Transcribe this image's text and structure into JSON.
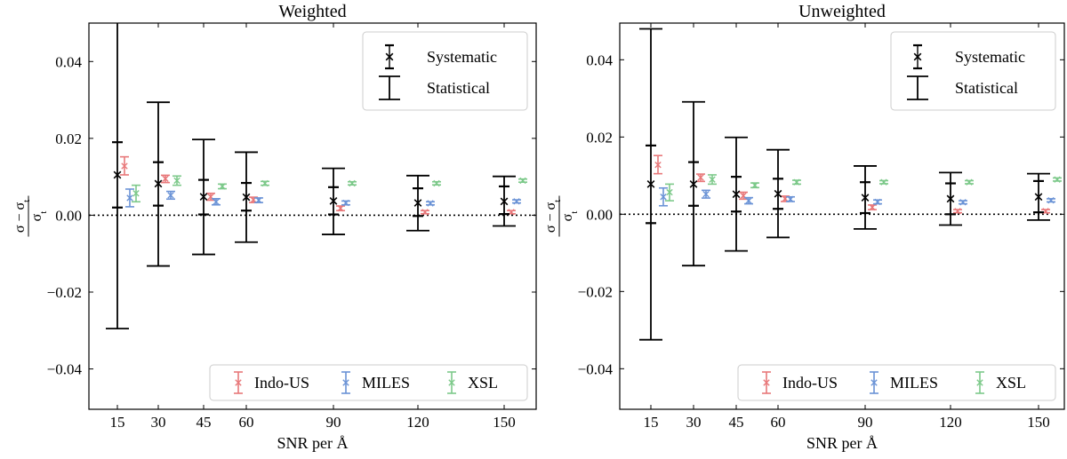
{
  "chart_data": [
    {
      "type": "errorbar",
      "title": "Weighted",
      "xlabel": "SNR per Å",
      "ylabel": {
        "num": "σ − σ",
        "num_sub": "t",
        "den": "σ",
        "den_sub": "t"
      },
      "ylim": [
        -0.0505,
        0.05
      ],
      "yticks": [
        -0.04,
        -0.02,
        0.0,
        0.02,
        0.04
      ],
      "ytick_labels": [
        "−0.04",
        "−0.02",
        "0.00",
        "0.02",
        "0.04"
      ],
      "categories": [
        "15",
        "30",
        "45",
        "60",
        "90",
        "120",
        "150"
      ],
      "reference_line": 0,
      "legend_upper": {
        "entries": [
          "Systematic",
          "Statistical"
        ],
        "location": "upper right"
      },
      "legend_lower": {
        "entries": [
          "Indo-US",
          "MILES",
          "XSL"
        ],
        "location": "lower right"
      },
      "colors": {
        "Indo-US": "#e8787a",
        "MILES": "#6b93d6",
        "XSL": "#7dc98a",
        "combined": "#000000"
      },
      "combined": [
        {
          "snr": 15,
          "value": 0.0105,
          "sys_low": 0.002,
          "sys_high": 0.019,
          "stat_low": -0.0295,
          "stat_high": 0.052
        },
        {
          "snr": 30,
          "value": 0.0082,
          "sys_low": 0.0025,
          "sys_high": 0.0138,
          "stat_low": -0.0132,
          "stat_high": 0.0294
        },
        {
          "snr": 45,
          "value": 0.0048,
          "sys_low": 0.0002,
          "sys_high": 0.0092,
          "stat_low": -0.0102,
          "stat_high": 0.0197
        },
        {
          "snr": 60,
          "value": 0.0047,
          "sys_low": 0.0012,
          "sys_high": 0.0084,
          "stat_low": -0.007,
          "stat_high": 0.0164
        },
        {
          "snr": 90,
          "value": 0.0037,
          "sys_low": 0.0002,
          "sys_high": 0.0073,
          "stat_low": -0.005,
          "stat_high": 0.0122
        },
        {
          "snr": 120,
          "value": 0.0032,
          "sys_low": -0.0002,
          "sys_high": 0.007,
          "stat_low": -0.004,
          "stat_high": 0.0103
        },
        {
          "snr": 150,
          "value": 0.0036,
          "sys_low": 0.0003,
          "sys_high": 0.0075,
          "stat_low": -0.0028,
          "stat_high": 0.0101
        }
      ],
      "series": [
        {
          "name": "Indo-US",
          "values": [
            0.0128,
            0.0095,
            0.0048,
            0.004,
            0.0018,
            0.0008,
            0.0008
          ],
          "err_low": [
            0.0105,
            0.0085,
            0.0039,
            0.0033,
            0.0012,
            0.0004,
            0.0004
          ],
          "err_high": [
            0.0152,
            0.0104,
            0.0057,
            0.0047,
            0.0024,
            0.0012,
            0.0012
          ]
        },
        {
          "name": "MILES",
          "values": [
            0.0045,
            0.0052,
            0.0035,
            0.0039,
            0.0032,
            0.0031,
            0.0036
          ],
          "err_low": [
            0.0022,
            0.0042,
            0.0027,
            0.0033,
            0.0027,
            0.0027,
            0.0032
          ],
          "err_high": [
            0.0068,
            0.0062,
            0.0043,
            0.0045,
            0.0037,
            0.0035,
            0.004
          ]
        },
        {
          "name": "XSL",
          "values": [
            0.0057,
            0.009,
            0.0075,
            0.0083,
            0.0083,
            0.0083,
            0.009
          ],
          "err_low": [
            0.0035,
            0.0078,
            0.0069,
            0.0078,
            0.0079,
            0.0079,
            0.0086
          ],
          "err_high": [
            0.0078,
            0.0102,
            0.0081,
            0.0088,
            0.0087,
            0.0087,
            0.0094
          ]
        }
      ]
    },
    {
      "type": "errorbar",
      "title": "Unweighted",
      "xlabel": "SNR per Å",
      "ylabel": {
        "num": "σ − σ",
        "num_sub": "t",
        "den": "σ",
        "den_sub": "t"
      },
      "ylim": [
        -0.0505,
        0.0495
      ],
      "yticks": [
        -0.04,
        -0.02,
        0.0,
        0.02,
        0.04
      ],
      "ytick_labels": [
        "−0.04",
        "−0.02",
        "0.00",
        "0.02",
        "0.04"
      ],
      "categories": [
        "15",
        "30",
        "45",
        "60",
        "90",
        "120",
        "150"
      ],
      "reference_line": 0,
      "legend_upper": {
        "entries": [
          "Systematic",
          "Statistical"
        ],
        "location": "upper right"
      },
      "legend_lower": {
        "entries": [
          "Indo-US",
          "MILES",
          "XSL"
        ],
        "location": "lower right"
      },
      "colors": {
        "Indo-US": "#e8787a",
        "MILES": "#6b93d6",
        "XSL": "#7dc98a",
        "combined": "#000000"
      },
      "combined": [
        {
          "snr": 15,
          "value": 0.0078,
          "sys_low": -0.0023,
          "sys_high": 0.0178,
          "stat_low": -0.0325,
          "stat_high": 0.048
        },
        {
          "snr": 30,
          "value": 0.0078,
          "sys_low": 0.0022,
          "sys_high": 0.0135,
          "stat_low": -0.0133,
          "stat_high": 0.0291
        },
        {
          "snr": 45,
          "value": 0.0052,
          "sys_low": 0.0007,
          "sys_high": 0.0097,
          "stat_low": -0.0095,
          "stat_high": 0.0199
        },
        {
          "snr": 60,
          "value": 0.0053,
          "sys_low": 0.0014,
          "sys_high": 0.0092,
          "stat_low": -0.006,
          "stat_high": 0.0167
        },
        {
          "snr": 90,
          "value": 0.0043,
          "sys_low": 0.0003,
          "sys_high": 0.0083,
          "stat_low": -0.0038,
          "stat_high": 0.0125
        },
        {
          "snr": 120,
          "value": 0.004,
          "sys_low": 0.0,
          "sys_high": 0.008,
          "stat_low": -0.0028,
          "stat_high": 0.0108
        },
        {
          "snr": 150,
          "value": 0.0045,
          "sys_low": 0.0005,
          "sys_high": 0.0086,
          "stat_low": -0.0015,
          "stat_high": 0.0105
        }
      ],
      "series": [
        {
          "name": "Indo-US",
          "values": [
            0.0128,
            0.0095,
            0.0048,
            0.004,
            0.0018,
            0.0008,
            0.0008
          ],
          "err_low": [
            0.0105,
            0.0085,
            0.0039,
            0.0033,
            0.0012,
            0.0004,
            0.0004
          ],
          "err_high": [
            0.0152,
            0.0104,
            0.0057,
            0.0047,
            0.0024,
            0.0012,
            0.0012
          ]
        },
        {
          "name": "MILES",
          "values": [
            0.0045,
            0.0052,
            0.0035,
            0.0039,
            0.0032,
            0.0031,
            0.0036
          ],
          "err_low": [
            0.0022,
            0.0042,
            0.0027,
            0.0033,
            0.0027,
            0.0027,
            0.0032
          ],
          "err_high": [
            0.0068,
            0.0062,
            0.0043,
            0.0045,
            0.0037,
            0.0035,
            0.004
          ]
        },
        {
          "name": "XSL",
          "values": [
            0.0057,
            0.009,
            0.0075,
            0.0083,
            0.0083,
            0.0083,
            0.009
          ],
          "err_low": [
            0.0035,
            0.0078,
            0.0069,
            0.0078,
            0.0079,
            0.0079,
            0.0086
          ],
          "err_high": [
            0.0078,
            0.0102,
            0.0081,
            0.0088,
            0.0087,
            0.0087,
            0.0094
          ]
        }
      ]
    }
  ]
}
